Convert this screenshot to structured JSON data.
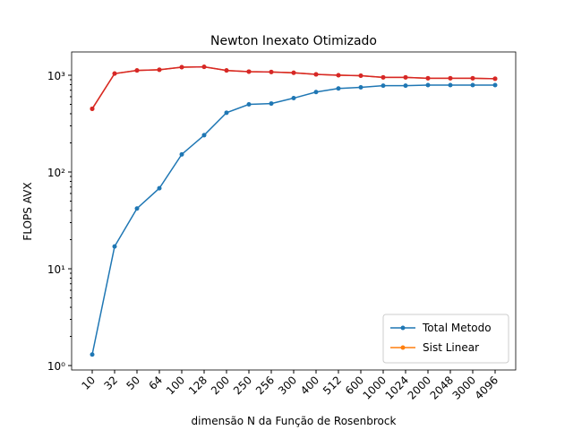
{
  "chart_data": {
    "type": "line",
    "title": "Newton Inexato Otimizado",
    "xlabel": "dimensão N da Função de Rosenbrock",
    "ylabel": "FLOPS AVX",
    "categories": [
      "10",
      "32",
      "50",
      "64",
      "100",
      "128",
      "200",
      "250",
      "256",
      "300",
      "400",
      "512",
      "600",
      "1000",
      "1024",
      "2000",
      "2048",
      "3000",
      "4096"
    ],
    "series": [
      {
        "name": "Total Metodo",
        "color": "#1f77b4",
        "values": [
          1.3,
          17,
          42,
          68,
          152,
          240,
          410,
          500,
          510,
          580,
          670,
          730,
          750,
          780,
          780,
          790,
          790,
          790,
          790
        ]
      },
      {
        "name": "Sist Linear",
        "color": "#ff7f0e",
        "values": [
          450,
          1040,
          1120,
          1140,
          1210,
          1220,
          1120,
          1090,
          1080,
          1060,
          1020,
          1000,
          990,
          950,
          950,
          930,
          930,
          930,
          920
        ]
      },
      {
        "color": "#d62728",
        "values": [
          450,
          1040,
          1120,
          1140,
          1210,
          1220,
          1120,
          1090,
          1080,
          1060,
          1020,
          1000,
          990,
          950,
          950,
          930,
          930,
          930,
          920
        ]
      }
    ],
    "ylim": [
      0.9,
      1740
    ],
    "log_y": true,
    "yticks": [
      {
        "value": 1,
        "label": "10⁰"
      },
      {
        "value": 10,
        "label": "10¹"
      },
      {
        "value": 100,
        "label": "10²"
      },
      {
        "value": 1000,
        "label": "10³"
      }
    ],
    "legend": "lower right"
  }
}
